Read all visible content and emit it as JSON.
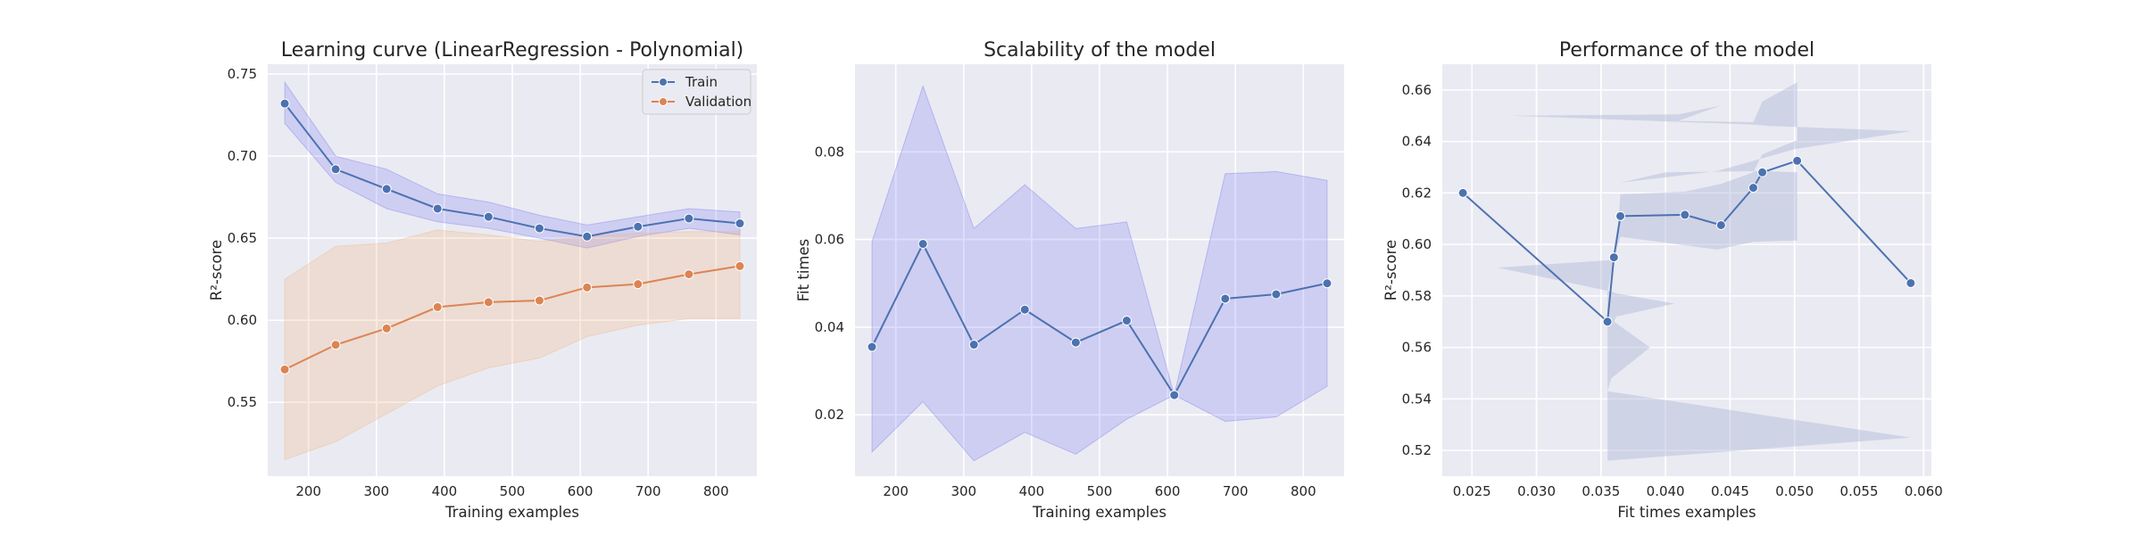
{
  "colors": {
    "figure_bg": "#ffffff",
    "axes_bg": "#eaeaf2",
    "grid": "#ffffff",
    "train": "#4c72b0",
    "validation": "#dd8452",
    "band_blue": "#6e6ef0",
    "band_orange": "#f2b27a",
    "band_slate": "#b0b8d6"
  },
  "chart_data": [
    {
      "type": "line",
      "title": "Learning curve (LinearRegression - Polynomial)",
      "xlabel": "Training examples",
      "ylabel": "R²-score",
      "xlim": [
        140,
        860
      ],
      "ylim": [
        0.505,
        0.756
      ],
      "xticks": [
        200,
        300,
        400,
        500,
        600,
        700,
        800
      ],
      "yticks": [
        0.55,
        0.6,
        0.65,
        0.7,
        0.75
      ],
      "ytick_labels": [
        "0.55",
        "0.60",
        "0.65",
        "0.70",
        "0.75"
      ],
      "grid": true,
      "legend_position": "top-right",
      "x": [
        165,
        240,
        315,
        390,
        465,
        540,
        610,
        685,
        760,
        835
      ],
      "series": [
        {
          "name": "Train",
          "values": [
            0.732,
            0.692,
            0.68,
            0.668,
            0.663,
            0.656,
            0.651,
            0.657,
            0.662,
            0.659
          ],
          "band_lower": [
            0.72,
            0.684,
            0.668,
            0.66,
            0.656,
            0.65,
            0.644,
            0.651,
            0.656,
            0.652
          ],
          "band_upper": [
            0.745,
            0.7,
            0.692,
            0.677,
            0.672,
            0.664,
            0.658,
            0.663,
            0.668,
            0.666
          ]
        },
        {
          "name": "Validation",
          "values": [
            0.57,
            0.585,
            0.595,
            0.608,
            0.611,
            0.612,
            0.62,
            0.622,
            0.628,
            0.633
          ],
          "band_lower": [
            0.515,
            0.526,
            0.543,
            0.56,
            0.571,
            0.577,
            0.59,
            0.597,
            0.601,
            0.601
          ],
          "band_upper": [
            0.625,
            0.645,
            0.647,
            0.655,
            0.652,
            0.648,
            0.651,
            0.653,
            0.654,
            0.654
          ]
        }
      ]
    },
    {
      "type": "line",
      "title": "Scalability of the model",
      "xlabel": "Training examples",
      "ylabel": "Fit times",
      "xlim": [
        140,
        860
      ],
      "ylim": [
        0.006,
        0.1
      ],
      "xticks": [
        200,
        300,
        400,
        500,
        600,
        700,
        800
      ],
      "yticks": [
        0.02,
        0.04,
        0.06,
        0.08
      ],
      "ytick_labels": [
        "0.02",
        "0.04",
        "0.06",
        "0.08"
      ],
      "grid": true,
      "x": [
        165,
        240,
        315,
        390,
        465,
        540,
        610,
        685,
        760,
        835
      ],
      "series": [
        {
          "values": [
            0.0355,
            0.059,
            0.036,
            0.044,
            0.0365,
            0.0415,
            0.0245,
            0.0465,
            0.0475,
            0.05
          ],
          "band_lower": [
            0.0115,
            0.023,
            0.0095,
            0.016,
            0.011,
            0.019,
            0.0245,
            0.0185,
            0.0195,
            0.0265
          ],
          "band_upper": [
            0.0595,
            0.095,
            0.0625,
            0.0725,
            0.0625,
            0.064,
            0.0245,
            0.075,
            0.0755,
            0.0735
          ]
        }
      ]
    },
    {
      "type": "line",
      "title": "Performance of the model",
      "xlabel": "Fit times examples",
      "ylabel": "R²-score",
      "xlim": [
        0.0227,
        0.0606
      ],
      "ylim": [
        0.51,
        0.67
      ],
      "xticks": [
        0.025,
        0.03,
        0.035,
        0.04,
        0.045,
        0.05,
        0.055,
        0.06
      ],
      "xtick_labels": [
        "0.025",
        "0.030",
        "0.035",
        "0.040",
        "0.045",
        "0.050",
        "0.055",
        "0.060"
      ],
      "yticks": [
        0.52,
        0.54,
        0.56,
        0.58,
        0.6,
        0.62,
        0.64,
        0.66
      ],
      "ytick_labels": [
        "0.52",
        "0.54",
        "0.56",
        "0.58",
        "0.60",
        "0.62",
        "0.64",
        "0.66"
      ],
      "grid": true,
      "points": [
        {
          "x": 0.0243,
          "y": 0.62
        },
        {
          "x": 0.0355,
          "y": 0.57
        },
        {
          "x": 0.036,
          "y": 0.595
        },
        {
          "x": 0.0365,
          "y": 0.611
        },
        {
          "x": 0.0415,
          "y": 0.6115
        },
        {
          "x": 0.0443,
          "y": 0.6075
        },
        {
          "x": 0.0468,
          "y": 0.622
        },
        {
          "x": 0.0475,
          "y": 0.628
        },
        {
          "x": 0.0502,
          "y": 0.6325
        },
        {
          "x": 0.059,
          "y": 0.585
        }
      ],
      "band_polygon": [
        {
          "x": 0.0355,
          "y": 0.516
        },
        {
          "x": 0.059,
          "y": 0.525
        },
        {
          "x": 0.0355,
          "y": 0.543
        },
        {
          "x": 0.0358,
          "y": 0.548
        },
        {
          "x": 0.0388,
          "y": 0.56
        },
        {
          "x": 0.036,
          "y": 0.57
        },
        {
          "x": 0.0362,
          "y": 0.572
        },
        {
          "x": 0.0407,
          "y": 0.577
        },
        {
          "x": 0.0362,
          "y": 0.581
        },
        {
          "x": 0.0355,
          "y": 0.582
        },
        {
          "x": 0.027,
          "y": 0.591
        },
        {
          "x": 0.036,
          "y": 0.594
        },
        {
          "x": 0.0365,
          "y": 0.603
        },
        {
          "x": 0.044,
          "y": 0.598
        },
        {
          "x": 0.0468,
          "y": 0.601
        },
        {
          "x": 0.0502,
          "y": 0.6015
        },
        {
          "x": 0.0502,
          "y": 0.628
        },
        {
          "x": 0.0475,
          "y": 0.6285
        },
        {
          "x": 0.04,
          "y": 0.628
        },
        {
          "x": 0.0365,
          "y": 0.624
        },
        {
          "x": 0.0365,
          "y": 0.6075
        },
        {
          "x": 0.0365,
          "y": 0.624
        },
        {
          "x": 0.044,
          "y": 0.6285
        },
        {
          "x": 0.05,
          "y": 0.637
        },
        {
          "x": 0.059,
          "y": 0.644
        },
        {
          "x": 0.048,
          "y": 0.646
        },
        {
          "x": 0.047,
          "y": 0.6465
        },
        {
          "x": 0.028,
          "y": 0.65
        },
        {
          "x": 0.041,
          "y": 0.6505
        },
        {
          "x": 0.0443,
          "y": 0.654
        },
        {
          "x": 0.041,
          "y": 0.648
        },
        {
          "x": 0.0468,
          "y": 0.6475
        },
        {
          "x": 0.0475,
          "y": 0.6555
        },
        {
          "x": 0.0502,
          "y": 0.663
        },
        {
          "x": 0.0502,
          "y": 0.6405
        },
        {
          "x": 0.0475,
          "y": 0.635
        },
        {
          "x": 0.0468,
          "y": 0.628
        },
        {
          "x": 0.0443,
          "y": 0.6235
        },
        {
          "x": 0.0415,
          "y": 0.6205
        },
        {
          "x": 0.0365,
          "y": 0.6195
        },
        {
          "x": 0.0362,
          "y": 0.5985
        },
        {
          "x": 0.0355,
          "y": 0.5815
        },
        {
          "x": 0.0355,
          "y": 0.516
        }
      ]
    }
  ]
}
